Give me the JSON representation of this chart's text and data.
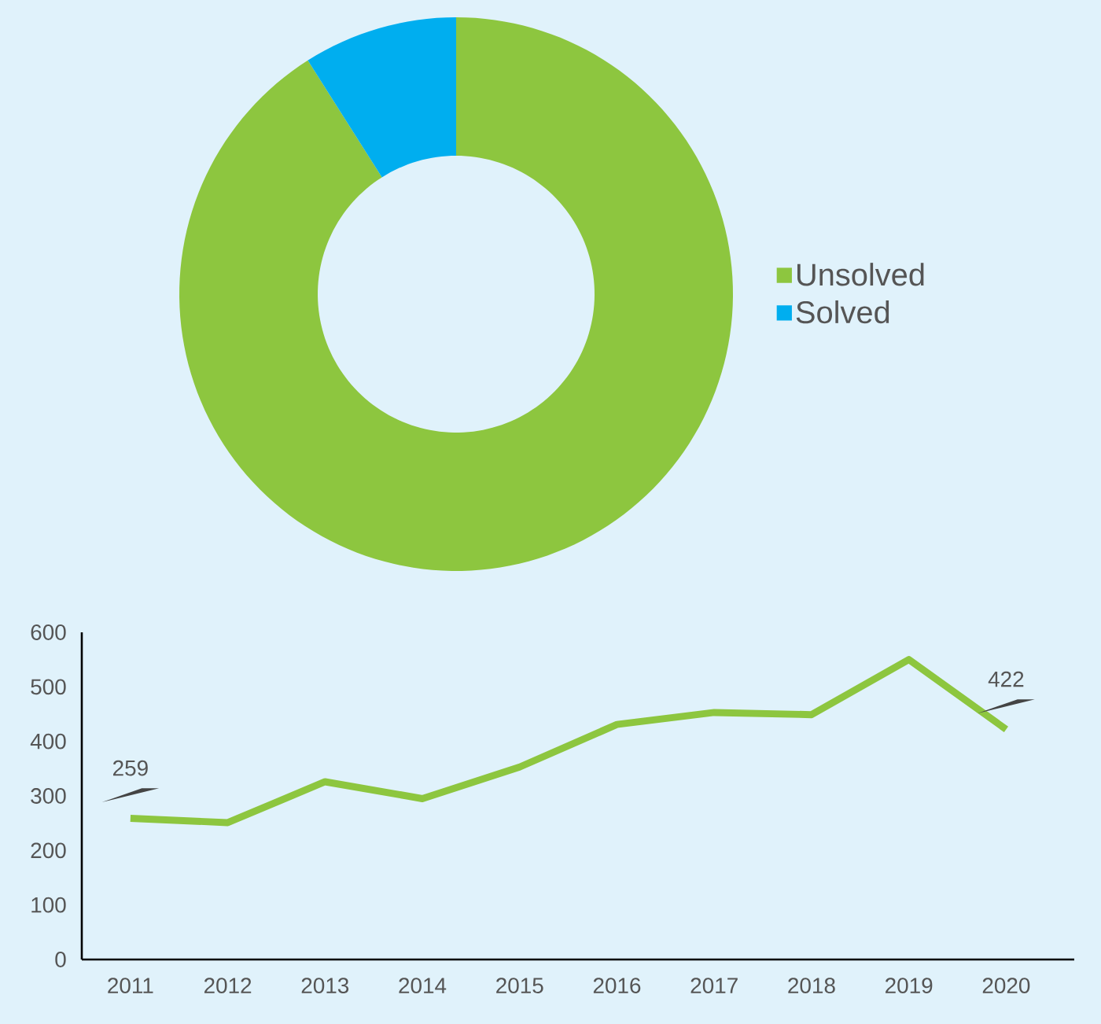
{
  "chart_data": [
    {
      "type": "donut",
      "categories": [
        "Unsolved",
        "Solved"
      ],
      "values": [
        91,
        9
      ],
      "colors": [
        "#8dc63f",
        "#00aeef"
      ],
      "legend": "right"
    },
    {
      "type": "line",
      "categories": [
        "2011",
        "2012",
        "2013",
        "2014",
        "2015",
        "2016",
        "2017",
        "2018",
        "2019",
        "2020"
      ],
      "values": [
        259,
        251,
        326,
        295,
        353,
        431,
        453,
        449,
        550,
        422
      ],
      "color": "#8dc63f",
      "ylim": [
        0,
        600
      ],
      "yticks": [
        0,
        100,
        200,
        300,
        400,
        500,
        600
      ],
      "value_labels": [
        "259",
        null,
        null,
        null,
        null,
        null,
        null,
        null,
        null,
        "422"
      ]
    }
  ]
}
